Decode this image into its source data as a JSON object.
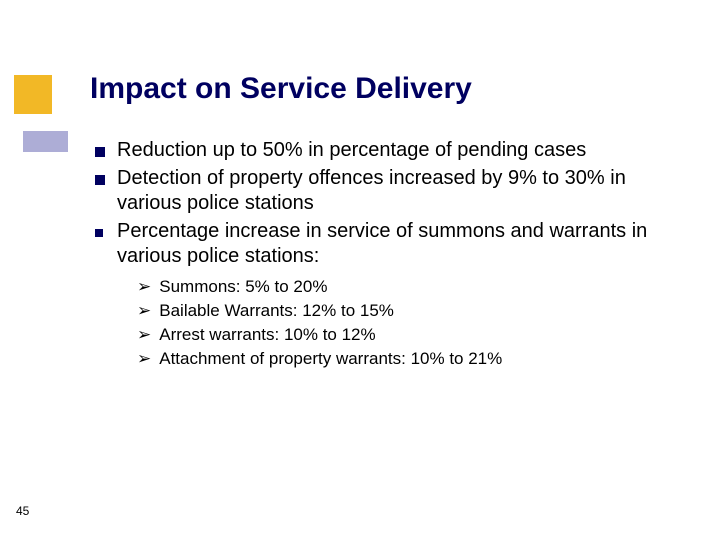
{
  "colors": {
    "decor1_bg": "#f0ab00",
    "decor2_bg": "#9999cc",
    "title_color": "#000060",
    "body_text_color": "#000000",
    "bullet_color": "#000060",
    "background": "#ffffff"
  },
  "title": "Impact on Service Delivery",
  "bullets": [
    "Reduction up to 50% in percentage of pending cases",
    "Detection of property offences increased by 9% to 30% in various police stations",
    "Percentage increase in service of summons and warrants in various police stations:"
  ],
  "sub_bullets": [
    "Summons: 5% to 20%",
    "Bailable Warrants: 12% to 15%",
    "Arrest warrants: 10% to 12%",
    "Attachment of property warrants: 10% to 21%"
  ],
  "page_number": "45",
  "typography": {
    "title_fontsize": 30,
    "body_fontsize": 20,
    "sub_fontsize": 17,
    "pagenum_fontsize": 12,
    "font_family": "Verdana"
  }
}
